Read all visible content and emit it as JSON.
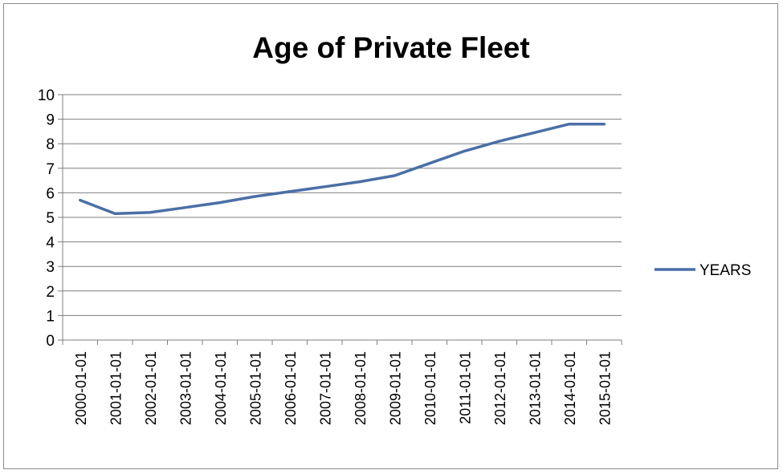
{
  "chart_data": {
    "type": "line",
    "title": "Age of Private Fleet",
    "xlabel": "",
    "ylabel": "",
    "categories": [
      "2000-01-01",
      "2001-01-01",
      "2002-01-01",
      "2003-01-01",
      "2004-01-01",
      "2005-01-01",
      "2006-01-01",
      "2007-01-01",
      "2008-01-01",
      "2009-01-01",
      "2010-01-01",
      "2011-01-01",
      "2012-01-01",
      "2013-01-01",
      "2014-01-01",
      "2015-01-01"
    ],
    "series": [
      {
        "name": "YEARS",
        "values": [
          5.7,
          5.15,
          5.2,
          5.4,
          5.6,
          5.85,
          6.05,
          6.25,
          6.45,
          6.7,
          7.2,
          7.7,
          8.1,
          8.45,
          8.8,
          8.8
        ]
      }
    ],
    "ylim": [
      0,
      10
    ],
    "yticks": [
      "0",
      "1",
      "2",
      "3",
      "4",
      "5",
      "6",
      "7",
      "8",
      "9",
      "10"
    ],
    "grid": true,
    "legend": "right",
    "colors": {
      "series": "#4a6fa5",
      "grid": "#7f7f7f",
      "axis": "#7f7f7f"
    }
  }
}
